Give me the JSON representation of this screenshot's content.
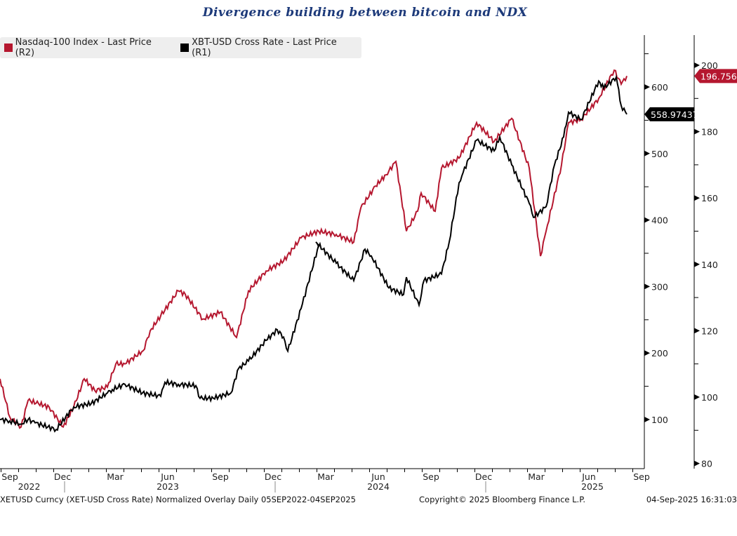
{
  "chart_data": {
    "type": "line",
    "title": "Divergence building between bitcoin and NDX",
    "x_unit": "months since Sep 2022",
    "legend_position": "top-left",
    "grid": false,
    "series": [
      {
        "name": "Nasdaq-100 Index - Last Price (R2)",
        "axis": "R2",
        "color": "#b5172f",
        "last_value_label": "196.7564",
        "x": [
          -0.56,
          0,
          0.64,
          1.04,
          1.64,
          2.24,
          3.04,
          3.64,
          4.24,
          4.84,
          5.56,
          6.04,
          6.56,
          7.6,
          8,
          8.6,
          9.6,
          10,
          11,
          12,
          12.92,
          13.6,
          14.6,
          15.6,
          16.6,
          17.6,
          18.6,
          19.6,
          20,
          20.84,
          21.44,
          22,
          22.6,
          23.24,
          23.44,
          24.24,
          24.6,
          25.6,
          26.6,
          27.6,
          28.6,
          29.6,
          30.24,
          30.56,
          31.44,
          31.84,
          32.56,
          33.56,
          34.44,
          34.84,
          35.16
        ],
        "values": [
          105.5,
          94,
          91,
          99,
          98,
          97,
          91,
          97,
          105.5,
          102,
          103,
          110,
          110,
          114,
          120,
          124.5,
          132,
          131,
          123.5,
          125.6,
          118,
          132,
          138,
          141,
          148,
          150,
          149,
          146.7,
          157,
          163.6,
          167,
          171,
          150,
          156,
          161.5,
          156,
          169,
          172,
          182.7,
          177,
          184,
          169,
          142.5,
          150,
          170,
          182.7,
          183.7,
          190,
          198.5,
          194.3,
          196.76
        ]
      },
      {
        "name": "XBT-USD Cross Rate - Last Price (R1)",
        "axis": "R1",
        "color": "#000000",
        "last_value_label": "558.97437",
        "x": [
          -0.56,
          0,
          0.64,
          1.04,
          1.44,
          2.64,
          3.64,
          4.64,
          5.56,
          5.84,
          6.56,
          7.56,
          8.6,
          8.84,
          9.6,
          10.6,
          10.84,
          11.6,
          12.6,
          13.04,
          13.6,
          14.6,
          15.24,
          15.6,
          15.84,
          16.6,
          17.6,
          17.44,
          18.6,
          19.6,
          20.24,
          20.6,
          21.6,
          22.44,
          22.6,
          23.32,
          23.6,
          24.6,
          25.04,
          25.6,
          25.84,
          26.6,
          27.6,
          27.92,
          28.6,
          29.6,
          29.84,
          30.56,
          31.04,
          31.56,
          31.84,
          32.56,
          33.56,
          33.84,
          34.56,
          34.84,
          35.16
        ],
        "values": [
          100,
          98,
          93,
          100,
          95,
          85,
          119,
          124,
          140,
          145,
          153,
          140,
          135,
          156,
          153,
          151,
          132,
          132,
          140,
          177,
          188,
          219,
          235,
          224,
          203,
          267,
          362,
          367,
          335,
          309,
          356,
          346,
          298,
          288,
          314,
          272,
          309,
          319,
          367,
          456,
          472,
          520,
          504,
          525,
          483,
          425,
          404,
          420,
          483,
          525,
          562,
          551,
          609,
          598,
          615,
          572,
          559
        ]
      }
    ],
    "axes": {
      "R1": {
        "range": [
          37,
          690
        ],
        "ticks": [
          100,
          200,
          300,
          400,
          500,
          600
        ]
      },
      "R2": {
        "range": [
          78,
          214
        ],
        "ticks": [
          80,
          100,
          120,
          140,
          160,
          180,
          200
        ]
      }
    },
    "x_ticks": {
      "months": [
        {
          "label": "Sep",
          "t": 0
        },
        {
          "label": "Dec",
          "t": 3
        },
        {
          "label": "Mar",
          "t": 6
        },
        {
          "label": "Jun",
          "t": 9
        },
        {
          "label": "Sep",
          "t": 12
        },
        {
          "label": "Dec",
          "t": 15
        },
        {
          "label": "Mar",
          "t": 18
        },
        {
          "label": "Jun",
          "t": 21
        },
        {
          "label": "Sep",
          "t": 24
        },
        {
          "label": "Dec",
          "t": 27
        },
        {
          "label": "Mar",
          "t": 30
        },
        {
          "label": "Jun",
          "t": 33
        },
        {
          "label": "Sep",
          "t": 36
        }
      ],
      "years": [
        {
          "label": "2022",
          "t": 1.1
        },
        {
          "label": "2023",
          "t": 9
        },
        {
          "label": "2024",
          "t": 21
        },
        {
          "label": "2025",
          "t": 33.2
        }
      ],
      "year_separators": [
        3.12,
        15.12,
        27.12
      ]
    }
  },
  "footer": {
    "left": "XETUSD Curncy (XET-USD Cross Rate) Normalized Overlay  Daily 05SEP2022-04SEP2025",
    "center": "Copyright© 2025 Bloomberg Finance L.P.",
    "right": "04-Sep-2025 16:31:03"
  }
}
